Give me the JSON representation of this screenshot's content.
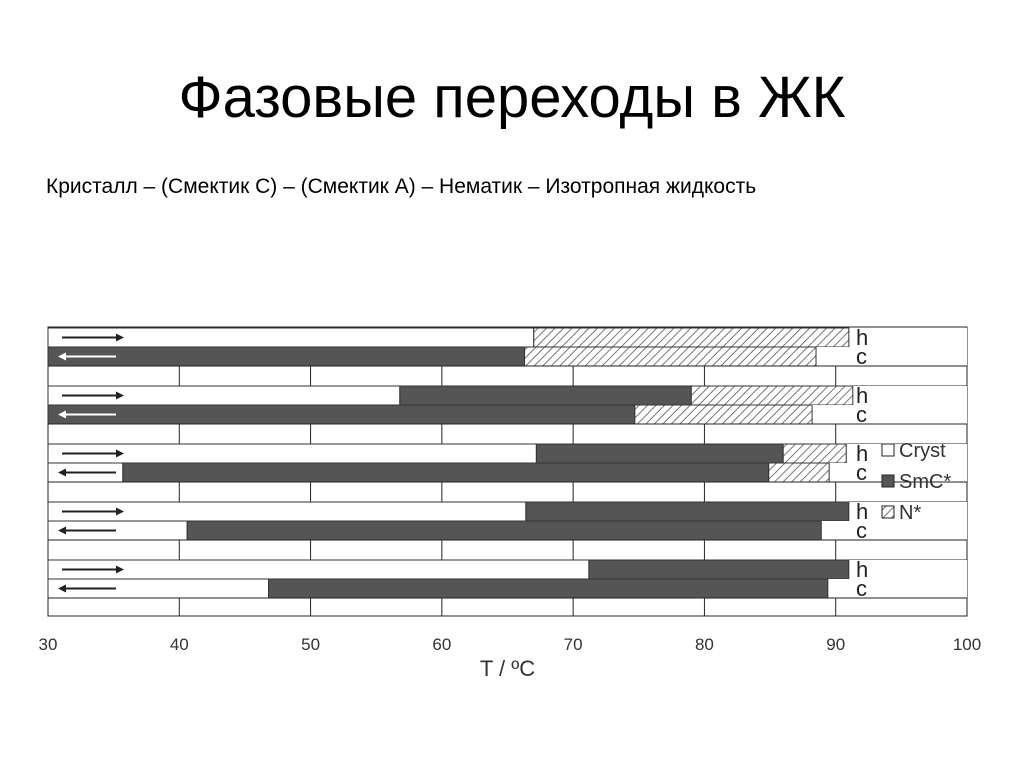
{
  "slide": {
    "title": "Фазовые переходы в ЖК",
    "subtitle": "Кристалл – (Смектик С) – (Смектик А) – Нематик – Изотропная жидкость"
  },
  "chart_data": {
    "type": "bar",
    "orientation": "horizontal-stacked-ranges",
    "xlabel": "T / ºC",
    "xlim": [
      30,
      100
    ],
    "xticks": [
      30,
      40,
      50,
      60,
      70,
      80,
      90,
      100
    ],
    "grid": true,
    "legend": {
      "placement": "right",
      "entries": [
        {
          "label": "Cryst",
          "fill": "white"
        },
        {
          "label": "SmC*",
          "fill": "dark"
        },
        {
          "label": "N*",
          "fill": "hatched"
        }
      ]
    },
    "colors": {
      "cryst": "#ffffff",
      "smc": "#555555",
      "border": "#333333",
      "hatch": "#777777"
    },
    "samples": [
      {
        "rows": [
          {
            "label": "h",
            "direction": "heating",
            "segments": [
              {
                "phase": "Cryst",
                "from": 30,
                "to": 67
              },
              {
                "phase": "N*",
                "from": 67,
                "to": 91
              }
            ]
          },
          {
            "label": "c",
            "direction": "cooling",
            "segments": [
              {
                "phase": "SmC*",
                "from": 30,
                "to": 66.3
              },
              {
                "phase": "N*",
                "from": 66.3,
                "to": 88.5
              }
            ]
          }
        ]
      },
      {
        "rows": [
          {
            "label": "h",
            "direction": "heating",
            "segments": [
              {
                "phase": "Cryst",
                "from": 30,
                "to": 56.8
              },
              {
                "phase": "SmC*",
                "from": 56.8,
                "to": 79
              },
              {
                "phase": "N*",
                "from": 79,
                "to": 91.3
              }
            ]
          },
          {
            "label": "c",
            "direction": "cooling",
            "segments": [
              {
                "phase": "SmC*",
                "from": 30,
                "to": 74.7
              },
              {
                "phase": "N*",
                "from": 74.7,
                "to": 88.2
              }
            ]
          }
        ]
      },
      {
        "rows": [
          {
            "label": "h",
            "direction": "heating",
            "segments": [
              {
                "phase": "Cryst",
                "from": 30,
                "to": 67.2
              },
              {
                "phase": "SmC*",
                "from": 67.2,
                "to": 86
              },
              {
                "phase": "N*",
                "from": 86,
                "to": 90.8
              }
            ]
          },
          {
            "label": "c",
            "direction": "cooling",
            "segments": [
              {
                "phase": "Cryst",
                "from": 30,
                "to": 35.7
              },
              {
                "phase": "SmC*",
                "from": 35.7,
                "to": 84.9
              },
              {
                "phase": "N*",
                "from": 84.9,
                "to": 89.5
              }
            ]
          }
        ]
      },
      {
        "rows": [
          {
            "label": "h",
            "direction": "heating",
            "segments": [
              {
                "phase": "Cryst",
                "from": 30,
                "to": 66.4
              },
              {
                "phase": "SmC*",
                "from": 66.4,
                "to": 91
              }
            ]
          },
          {
            "label": "c",
            "direction": "cooling",
            "segments": [
              {
                "phase": "Cryst",
                "from": 30,
                "to": 40.6
              },
              {
                "phase": "SmC*",
                "from": 40.6,
                "to": 88.9
              }
            ]
          }
        ]
      },
      {
        "rows": [
          {
            "label": "h",
            "direction": "heating",
            "segments": [
              {
                "phase": "Cryst",
                "from": 30,
                "to": 71.2
              },
              {
                "phase": "SmC*",
                "from": 71.2,
                "to": 91
              }
            ]
          },
          {
            "label": "c",
            "direction": "cooling",
            "segments": [
              {
                "phase": "Cryst",
                "from": 30,
                "to": 46.8
              },
              {
                "phase": "SmC*",
                "from": 46.8,
                "to": 89.4
              }
            ]
          }
        ]
      }
    ]
  }
}
